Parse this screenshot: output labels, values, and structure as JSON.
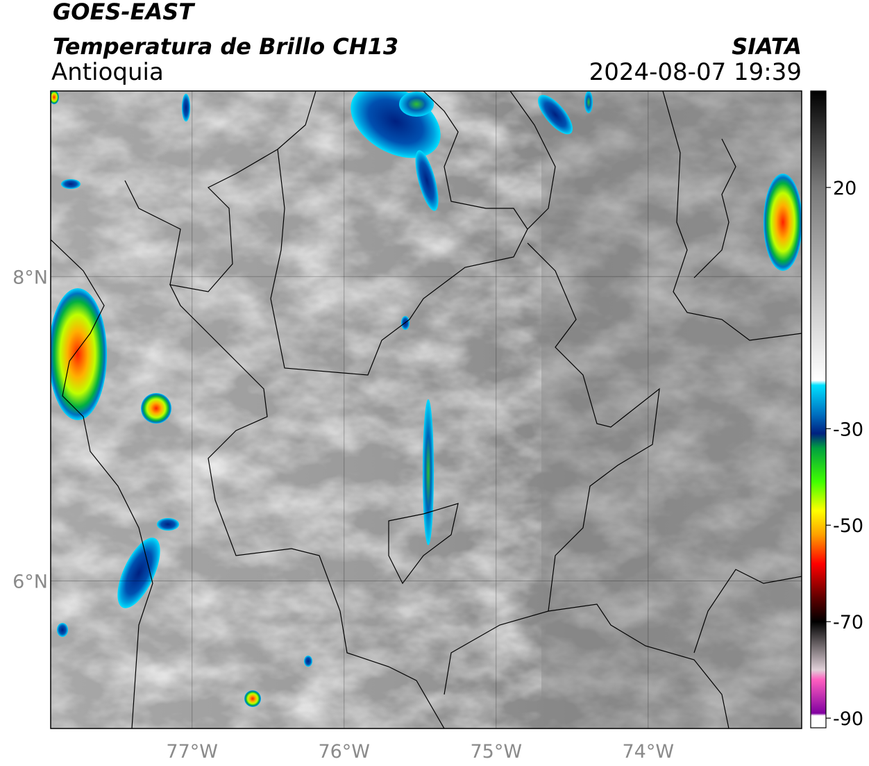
{
  "header": {
    "title": "GOES-EAST",
    "subtitle": "Temperatura de Brillo CH13",
    "region": "Antioquia",
    "source": "SIATA",
    "datetime": "2024-08-07 19:39"
  },
  "map": {
    "xlim": [
      -77.93,
      -72.99
    ],
    "ylim": [
      5.03,
      9.22
    ],
    "xticks": [
      {
        "value": -77,
        "label": "77°W"
      },
      {
        "value": -76,
        "label": "76°W"
      },
      {
        "value": -75,
        "label": "75°W"
      },
      {
        "value": -74,
        "label": "74°W"
      }
    ],
    "yticks": [
      {
        "value": 8,
        "label": "8°N"
      },
      {
        "value": 6,
        "label": "6°N"
      }
    ],
    "grid": true
  },
  "colorbar": {
    "clim": [
      -92,
      40
    ],
    "ticks": [
      20,
      -30,
      -50,
      -70,
      -90
    ],
    "colormap": [
      [
        40,
        "#000000"
      ],
      [
        20,
        "#7a7a7a"
      ],
      [
        -20,
        "#ffffff"
      ],
      [
        -21,
        "#00e0ff"
      ],
      [
        -27,
        "#0070c0"
      ],
      [
        -31,
        "#002080"
      ],
      [
        -34,
        "#00a040"
      ],
      [
        -41,
        "#40ff00"
      ],
      [
        -47,
        "#ffff00"
      ],
      [
        -52,
        "#ffa000"
      ],
      [
        -58,
        "#ff0000"
      ],
      [
        -65,
        "#600000"
      ],
      [
        -70,
        "#000000"
      ],
      [
        -80,
        "#e0d0d8"
      ],
      [
        -82,
        "#ff60c0"
      ],
      [
        -89,
        "#8000a0"
      ],
      [
        -89.5,
        "#ffffff"
      ],
      [
        -92,
        "#ffffff"
      ]
    ]
  }
}
